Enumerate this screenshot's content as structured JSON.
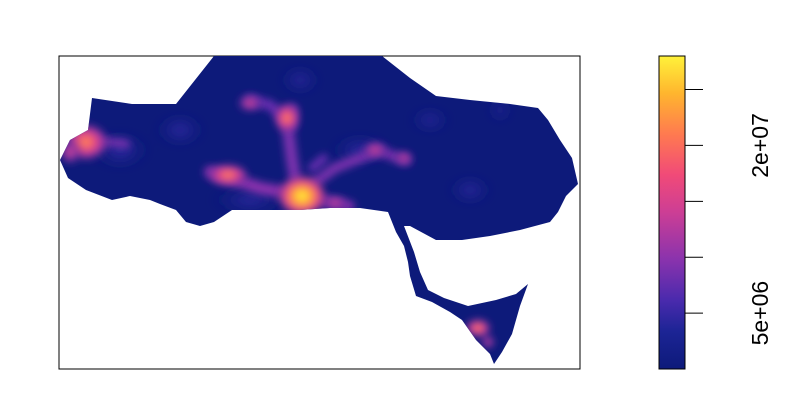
{
  "legend": {
    "ticks": [
      {
        "value": 5000000,
        "label": "5e+06"
      },
      {
        "value": 10000000,
        "label": ""
      },
      {
        "value": 15000000,
        "label": ""
      },
      {
        "value": 20000000,
        "label": "2e+07"
      },
      {
        "value": 25000000,
        "label": ""
      }
    ],
    "range": [
      0,
      28000000
    ],
    "palette": [
      "#0d1a7a",
      "#2a2aa8",
      "#6a2fb0",
      "#b63aa0",
      "#ea4a80",
      "#ff7a4a",
      "#ffc02a",
      "#ffff40"
    ]
  },
  "map": {
    "background_color": "#ffffff",
    "land_color": "#0d1a7a"
  }
}
